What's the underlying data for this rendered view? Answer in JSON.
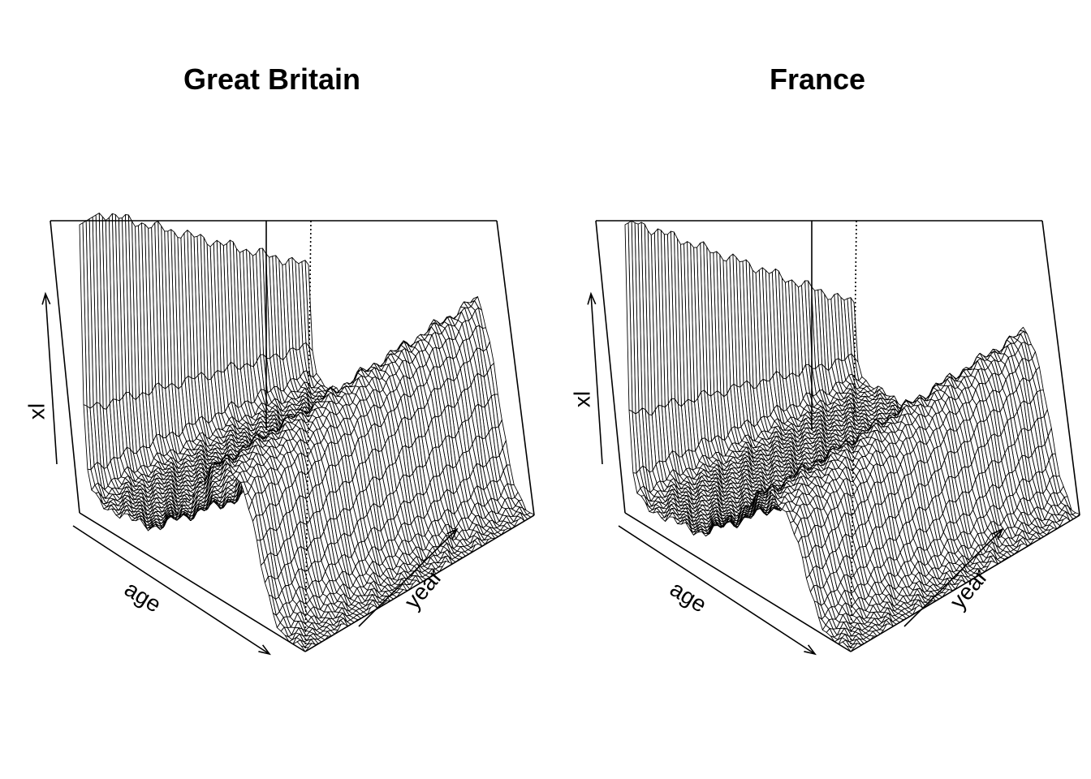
{
  "chart_data": [
    {
      "type": "surface",
      "title": "Great Britain",
      "xlabel": "age",
      "ylabel": "year",
      "zlabel": "xl",
      "grid": false,
      "age_range": [
        0,
        110
      ],
      "year_range": [
        1841,
        2020
      ],
      "surface": {
        "infant_peak_rel": [
          0.98,
          0.38
        ],
        "adult_level_rel": [
          0.08,
          0.005
        ],
        "senescence_peak_rel": [
          0.4,
          0.62
        ],
        "mode_age": [
          72,
          82
        ]
      }
    },
    {
      "type": "surface",
      "title": "France",
      "xlabel": "age",
      "ylabel": "year",
      "zlabel": "xl",
      "grid": false,
      "age_range": [
        0,
        110
      ],
      "year_range": [
        1816,
        2020
      ],
      "surface": {
        "infant_peak_rel": [
          0.95,
          0.25
        ],
        "adult_level_rel": [
          0.07,
          0.004
        ],
        "senescence_peak_rel": [
          0.3,
          0.52
        ],
        "mode_age": [
          72,
          84
        ]
      }
    }
  ]
}
